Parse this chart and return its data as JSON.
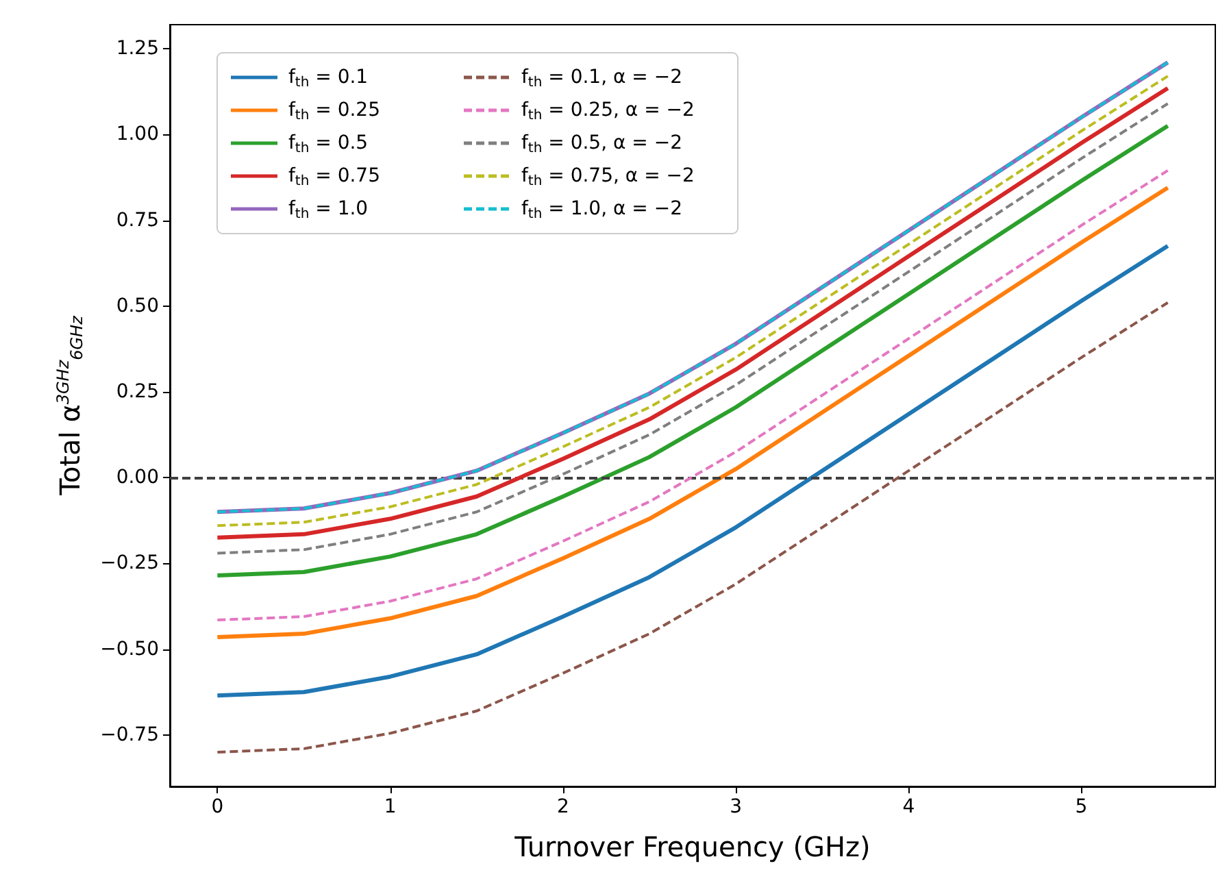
{
  "chart_data": {
    "type": "line",
    "xlabel": "Turnover Frequency (GHz)",
    "ylabel": "Total α$^{3GHz}$$_{6GHz}$",
    "x": [
      0,
      0.5,
      1,
      1.5,
      2,
      2.5,
      3,
      3.5,
      4,
      4.5,
      5,
      5.5
    ],
    "xlim": [
      -0.275,
      5.775
    ],
    "xticks": [
      0,
      1,
      2,
      3,
      4,
      5
    ],
    "ylim": [
      -0.9,
      1.32
    ],
    "yticks": [
      {
        "value": -0.75,
        "label": "−0.75"
      },
      {
        "value": -0.5,
        "label": "−0.50"
      },
      {
        "value": -0.25,
        "label": "−0.25"
      },
      {
        "value": 0,
        "label": "0.00"
      },
      {
        "value": 0.25,
        "label": "0.25"
      },
      {
        "value": 0.5,
        "label": "0.50"
      },
      {
        "value": 0.75,
        "label": "0.75"
      },
      {
        "value": 1,
        "label": "1.00"
      },
      {
        "value": 1.25,
        "label": "1.25"
      }
    ],
    "grid": false,
    "legend": "top left",
    "marker": "none",
    "series": [
      {
        "name": "f$_{th}$ = 0.1",
        "color": "#1f77b4",
        "line_style": "solid",
        "values": [
          -0.635,
          -0.625,
          -0.58,
          -0.515,
          -0.405,
          -0.29,
          -0.145,
          0.02,
          0.185,
          0.35,
          0.515,
          0.675
        ]
      },
      {
        "name": "f$_{th}$ = 0.25",
        "color": "#ff7f0e",
        "line_style": "solid",
        "values": [
          -0.465,
          -0.455,
          -0.41,
          -0.345,
          -0.235,
          -0.12,
          0.025,
          0.19,
          0.355,
          0.52,
          0.685,
          0.845
        ]
      },
      {
        "name": "f$_{th}$ = 0.5",
        "color": "#2ca02c",
        "line_style": "solid",
        "values": [
          -0.285,
          -0.275,
          -0.23,
          -0.165,
          -0.055,
          0.06,
          0.205,
          0.37,
          0.535,
          0.7,
          0.865,
          1.025
        ]
      },
      {
        "name": "f$_{th}$ = 0.75",
        "color": "#d62728",
        "line_style": "solid",
        "values": [
          -0.175,
          -0.165,
          -0.12,
          -0.055,
          0.055,
          0.17,
          0.315,
          0.48,
          0.645,
          0.81,
          0.975,
          1.135
        ]
      },
      {
        "name": "f$_{th}$ = 1.0",
        "color": "#9467bd",
        "line_style": "solid",
        "values": [
          -0.1,
          -0.09,
          -0.045,
          0.02,
          0.13,
          0.245,
          0.39,
          0.555,
          0.72,
          0.885,
          1.05,
          1.21
        ]
      },
      {
        "name": "f$_{th}$ = 0.1, α = −2",
        "color": "#8c564b",
        "line_style": "dashed",
        "values": [
          -0.8,
          -0.79,
          -0.745,
          -0.68,
          -0.57,
          -0.455,
          -0.31,
          -0.145,
          0.02,
          0.185,
          0.35,
          0.51
        ]
      },
      {
        "name": "f$_{th}$ = 0.25, α = −2",
        "color": "#e377c2",
        "line_style": "dashed",
        "values": [
          -0.415,
          -0.405,
          -0.36,
          -0.295,
          -0.185,
          -0.07,
          0.075,
          0.24,
          0.405,
          0.57,
          0.735,
          0.895
        ]
      },
      {
        "name": "f$_{th}$ = 0.5, α = −2",
        "color": "#7f7f7f",
        "line_style": "dashed",
        "values": [
          -0.22,
          -0.21,
          -0.165,
          -0.1,
          0.01,
          0.125,
          0.27,
          0.435,
          0.6,
          0.765,
          0.93,
          1.09
        ]
      },
      {
        "name": "f$_{th}$ = 0.75, α = −2",
        "color": "#bcbd22",
        "line_style": "dashed",
        "values": [
          -0.14,
          -0.13,
          -0.085,
          -0.02,
          0.09,
          0.205,
          0.35,
          0.515,
          0.68,
          0.845,
          1.01,
          1.17
        ]
      },
      {
        "name": "f$_{th}$ = 1.0, α = −2",
        "color": "#17becf",
        "line_style": "dashed",
        "values": [
          -0.1,
          -0.09,
          -0.045,
          0.02,
          0.13,
          0.245,
          0.39,
          0.555,
          0.72,
          0.885,
          1.05,
          1.21
        ]
      }
    ],
    "ref_lines": [
      {
        "axis": "y",
        "value": 0,
        "color": "#404040",
        "line_style": "dashed"
      }
    ]
  }
}
